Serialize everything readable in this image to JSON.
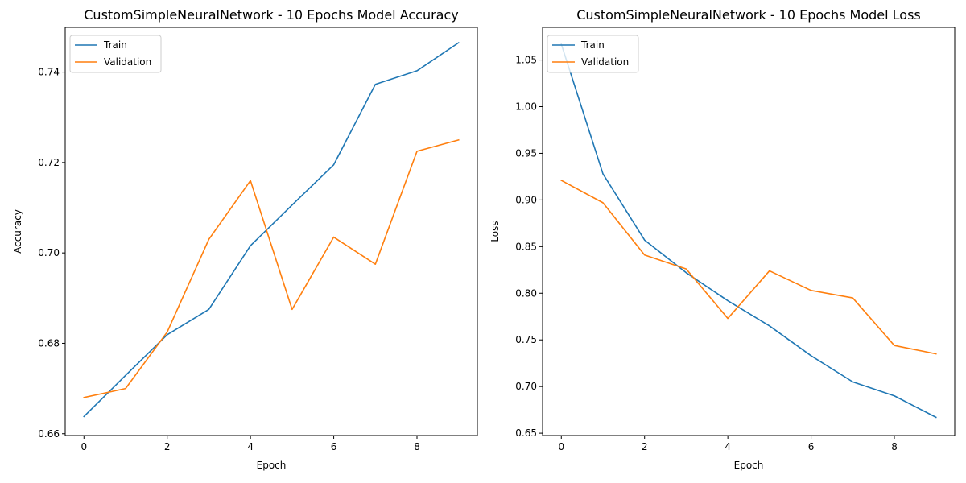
{
  "chart_data": [
    {
      "type": "line",
      "title": "CustomSimpleNeuralNetwork - 10 Epochs Model Accuracy",
      "xlabel": "Epoch",
      "ylabel": "Accuracy",
      "x": [
        0,
        1,
        2,
        3,
        4,
        5,
        6,
        7,
        8,
        9
      ],
      "xlim": [
        -0.45,
        9.45
      ],
      "ylim": [
        0.6596,
        0.7499
      ],
      "xticks": [
        0,
        2,
        4,
        6,
        8
      ],
      "yticks": [
        0.66,
        0.68,
        0.7,
        0.72,
        0.74
      ],
      "ytick_labels": [
        "0.66",
        "0.68",
        "0.70",
        "0.72",
        "0.74"
      ],
      "legend_position": "upper left",
      "series": [
        {
          "name": "Train",
          "color": "#1f77b4",
          "values": [
            0.6638,
            0.6729,
            0.6819,
            0.6875,
            0.7016,
            0.7106,
            0.7195,
            0.7373,
            0.7403,
            0.7465
          ]
        },
        {
          "name": "Validation",
          "color": "#ff7f0e",
          "values": [
            0.668,
            0.67,
            0.6825,
            0.703,
            0.716,
            0.6875,
            0.7035,
            0.6975,
            0.7225,
            0.725
          ]
        }
      ]
    },
    {
      "type": "line",
      "title": "CustomSimpleNeuralNetwork - 10 Epochs Model Loss",
      "xlabel": "Epoch",
      "ylabel": "Loss",
      "x": [
        0,
        1,
        2,
        3,
        4,
        5,
        6,
        7,
        8,
        9
      ],
      "xlim": [
        -0.45,
        9.45
      ],
      "ylim": [
        0.6475,
        1.085
      ],
      "xticks": [
        0,
        2,
        4,
        6,
        8
      ],
      "yticks": [
        0.65,
        0.7,
        0.75,
        0.8,
        0.85,
        0.9,
        0.95,
        1.0,
        1.05
      ],
      "ytick_labels": [
        "0.65",
        "0.70",
        "0.75",
        "0.80",
        "0.85",
        "0.90",
        "0.95",
        "1.00",
        "1.05"
      ],
      "legend_position": "upper left",
      "series": [
        {
          "name": "Train",
          "color": "#1f77b4",
          "values": [
            1.067,
            0.928,
            0.857,
            0.822,
            0.792,
            0.765,
            0.733,
            0.705,
            0.69,
            0.667
          ]
        },
        {
          "name": "Validation",
          "color": "#ff7f0e",
          "values": [
            0.921,
            0.897,
            0.841,
            0.826,
            0.773,
            0.824,
            0.803,
            0.795,
            0.744,
            0.735
          ]
        }
      ]
    }
  ]
}
